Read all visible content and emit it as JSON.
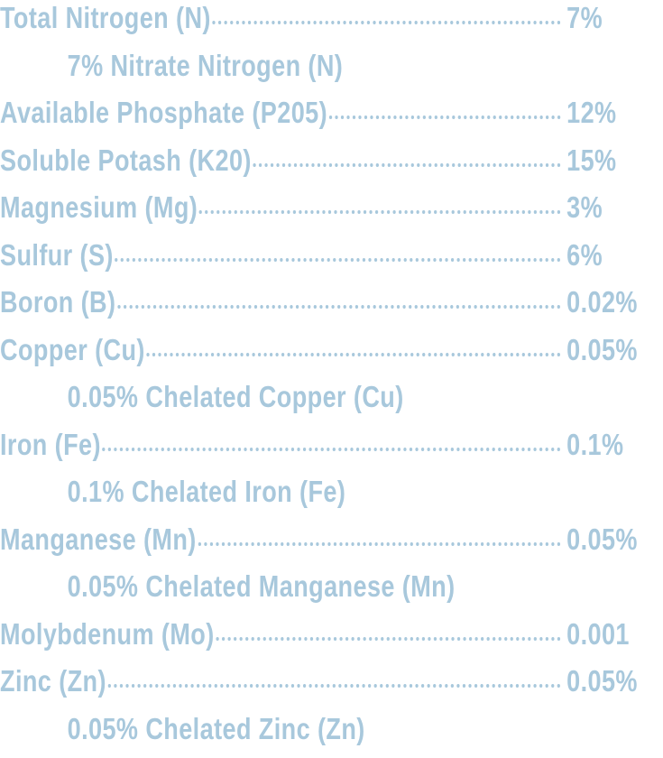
{
  "items": [
    {
      "label": "Total Nitrogen (N)",
      "value": "7%",
      "detail": "7% Nitrate Nitrogen (N)"
    },
    {
      "label": "Available Phosphate (P205)",
      "value": "12%"
    },
    {
      "label": "Soluble Potash (K20)",
      "value": "15%"
    },
    {
      "label": "Magnesium (Mg)",
      "value": "3%"
    },
    {
      "label": "Sulfur (S)",
      "value": "6%"
    },
    {
      "label": "Boron (B)",
      "value": "0.02%"
    },
    {
      "label": "Copper (Cu)",
      "value": "0.05%",
      "detail": "0.05% Chelated Copper (Cu)"
    },
    {
      "label": "Iron (Fe)",
      "value": "0.1%",
      "detail": "0.1% Chelated Iron (Fe)"
    },
    {
      "label": "Manganese (Mn)",
      "value": "0.05%",
      "detail": "0.05% Chelated Manganese (Mn)"
    },
    {
      "label": "Molybdenum (Mo)",
      "value": "0.001"
    },
    {
      "label": "Zinc (Zn)",
      "value": "0.05%",
      "detail": "0.05% Chelated Zinc (Zn)"
    }
  ]
}
